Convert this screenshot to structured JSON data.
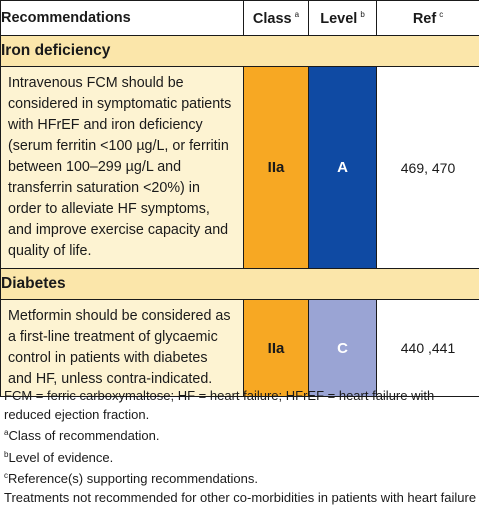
{
  "table": {
    "headers": {
      "recommendations": "Recommendations",
      "class": "Class",
      "class_mark": "a",
      "level": "Level",
      "level_mark": "b",
      "ref": "Ref",
      "ref_mark": "c"
    },
    "sections": [
      {
        "title": "Iron deficiency",
        "rows": [
          {
            "text": "Intravenous FCM should be considered in symptomatic patients with HFrEF and iron deficiency (serum ferritin <100 µg/L, or ferritin between 100–299 µg/L and transferrin saturation <20%) in order to alleviate HF symptoms, and improve exercise capacity and quality of life.",
            "class": "IIa",
            "level": "A",
            "ref": "469, 470"
          }
        ]
      },
      {
        "title": "Diabetes",
        "rows": [
          {
            "text": "Metformin should be considered as a first-line treatment of glycaemic control in patients with diabetes and HF, unless contra-indicated.",
            "class": "IIa",
            "level": "C",
            "ref": "440 ,441"
          }
        ]
      }
    ]
  },
  "colors": {
    "class_iia": "#f7a823",
    "level_a": "#0f4aa3",
    "level_c": "#9aa4d4",
    "section_bg": "#fbe6aa",
    "text_bg": "#fdf3d2"
  },
  "footnotes": {
    "abbreviations": "FCM = ferric carboxymaltose; HF = heart failure; HFrEF = heart failure with reduced ejection fraction.",
    "a_mark": "a",
    "a_text": "Class of recommendation.",
    "b_mark": "b",
    "b_text": "Level of evidence.",
    "c_mark": "c",
    "c_text": "Reference(s) supporting recommendations.",
    "note": "Treatments not recommended for other co-morbidities in patients with heart failure"
  }
}
